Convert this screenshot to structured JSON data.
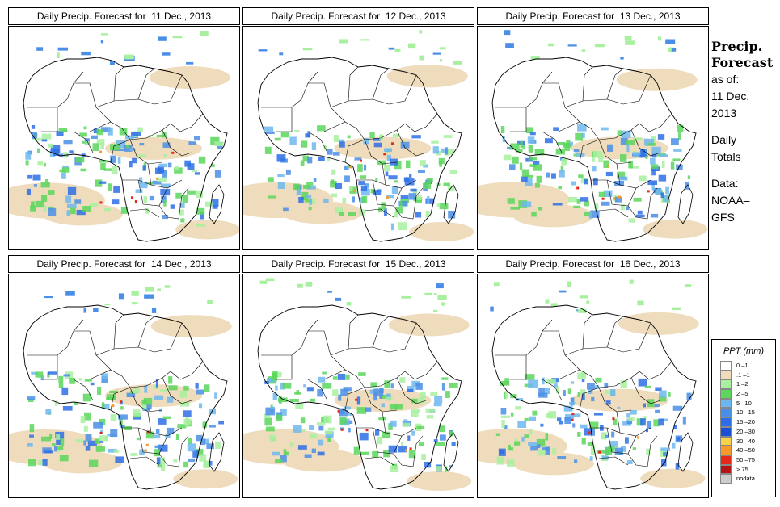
{
  "panels": [
    {
      "title": "Daily Precip. Forecast for  11 Dec., 2013"
    },
    {
      "title": "Daily Precip. Forecast for  12 Dec., 2013"
    },
    {
      "title": "Daily Precip. Forecast for  13 Dec., 2013"
    },
    {
      "title": "Daily Precip. Forecast for  14 Dec., 2013"
    },
    {
      "title": "Daily Precip. Forecast for  15 Dec., 2013"
    },
    {
      "title": "Daily Precip. Forecast for  16 Dec., 2013"
    }
  ],
  "sidebar": {
    "title_line1": "Precip.",
    "title_line2": "Forecast",
    "as_of_label": "as of:",
    "date_line1": "11 Dec.",
    "date_line2": "2013",
    "totals_line1": "Daily",
    "totals_line2": "Totals",
    "data_line1": "Data:",
    "data_line2": "NOAA–",
    "data_line3": "GFS"
  },
  "legend": {
    "title": "PPT (mm)",
    "items": [
      {
        "label": "0 –1",
        "color": "#ffffff"
      },
      {
        "label": ".1 –1",
        "color": "#efdcbc"
      },
      {
        "label": "1 –2",
        "color": "#a8f0a0"
      },
      {
        "label": "2 –5",
        "color": "#5cd65c"
      },
      {
        "label": "5 –10",
        "color": "#6eb7ee"
      },
      {
        "label": "10 –15",
        "color": "#4a8ee6"
      },
      {
        "label": "15 –20",
        "color": "#2d6ee6"
      },
      {
        "label": "20 –30",
        "color": "#1a4fd6"
      },
      {
        "label": "30 –40",
        "color": "#f5d24a"
      },
      {
        "label": "40 –50",
        "color": "#f59a2a"
      },
      {
        "label": "50 –75",
        "color": "#e6281a"
      },
      {
        "label": "> 75",
        "color": "#b41414"
      },
      {
        "label": "nodata",
        "color": "#cccccc"
      }
    ]
  }
}
